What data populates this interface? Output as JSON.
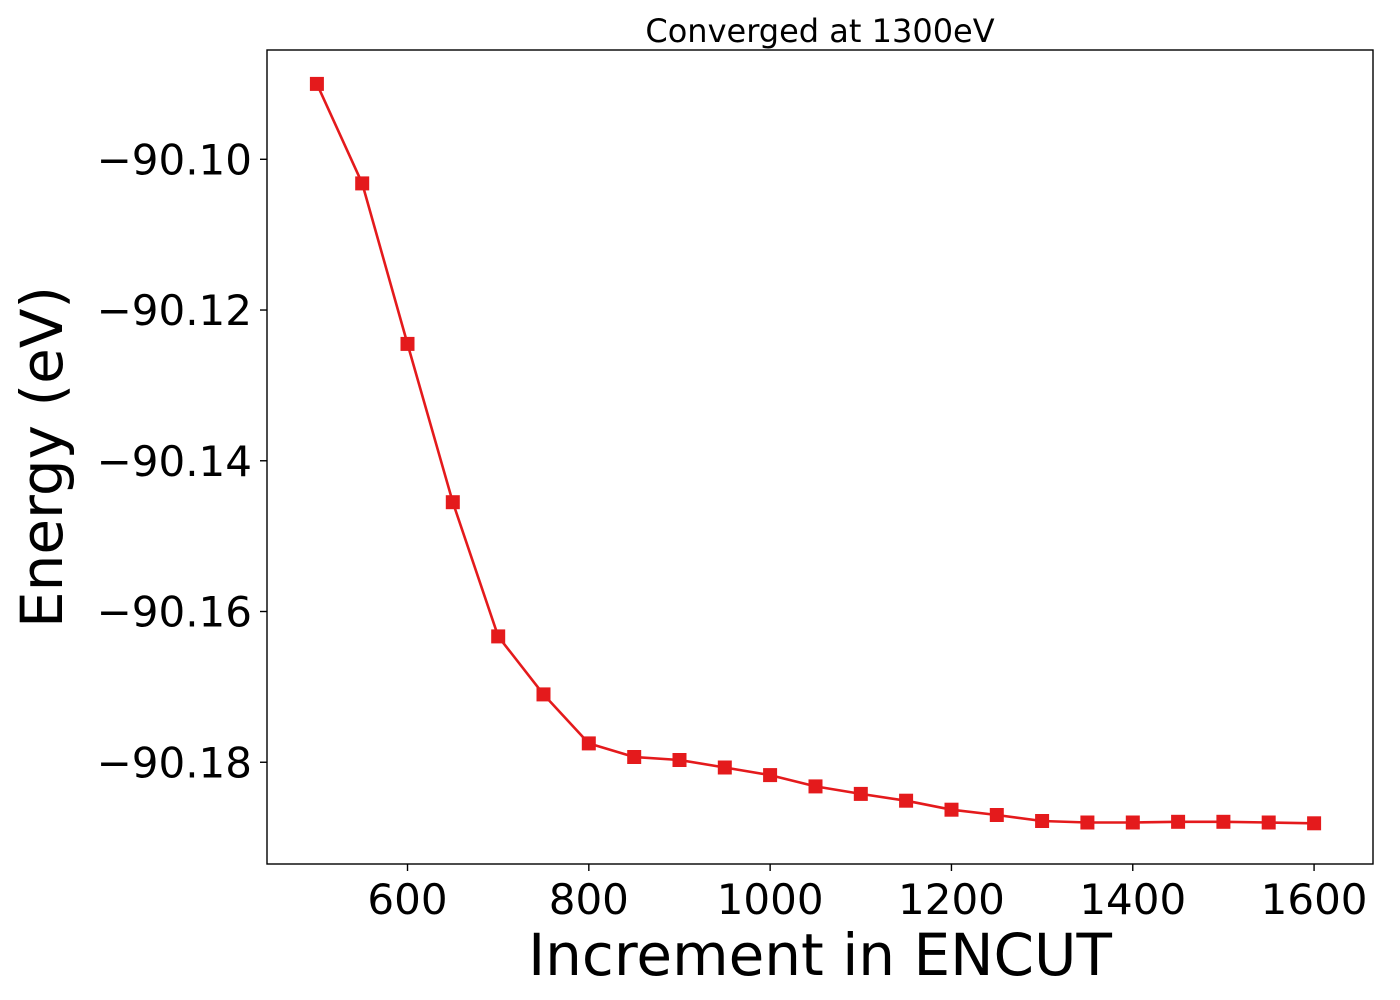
{
  "chart_data": {
    "type": "line",
    "title": "Converged at 1300eV",
    "xlabel": "Increment in ENCUT",
    "ylabel": "Energy (eV)",
    "xlim": [
      445,
      1665
    ],
    "ylim": [
      -90.1935,
      -90.0855
    ],
    "x_ticks": [
      600,
      800,
      1000,
      1200,
      1400,
      1600
    ],
    "x_tick_labels": [
      "600",
      "800",
      "1000",
      "1200",
      "1400",
      "1600"
    ],
    "y_ticks": [
      -90.1,
      -90.12,
      -90.14,
      -90.16,
      -90.18
    ],
    "y_tick_labels": [
      "−90.10",
      "−90.12",
      "−90.14",
      "−90.16",
      "−90.18"
    ],
    "grid": false,
    "marker": "square",
    "color": "#e41a1c",
    "series": [
      {
        "x": [
          500,
          550,
          600,
          650,
          700,
          750,
          800,
          850,
          900,
          950,
          1000,
          1050,
          1100,
          1150,
          1200,
          1250,
          1300,
          1350,
          1400,
          1450,
          1500,
          1550,
          1600
        ],
        "values": [
          -90.09,
          -90.1032,
          -90.1245,
          -90.1455,
          -90.1633,
          -90.171,
          -90.1775,
          -90.1793,
          -90.1797,
          -90.1807,
          -90.1817,
          -90.1832,
          -90.1842,
          -90.1851,
          -90.1863,
          -90.187,
          -90.1878,
          -90.188,
          -90.188,
          -90.1879,
          -90.1879,
          -90.188,
          -90.1881
        ]
      }
    ]
  }
}
